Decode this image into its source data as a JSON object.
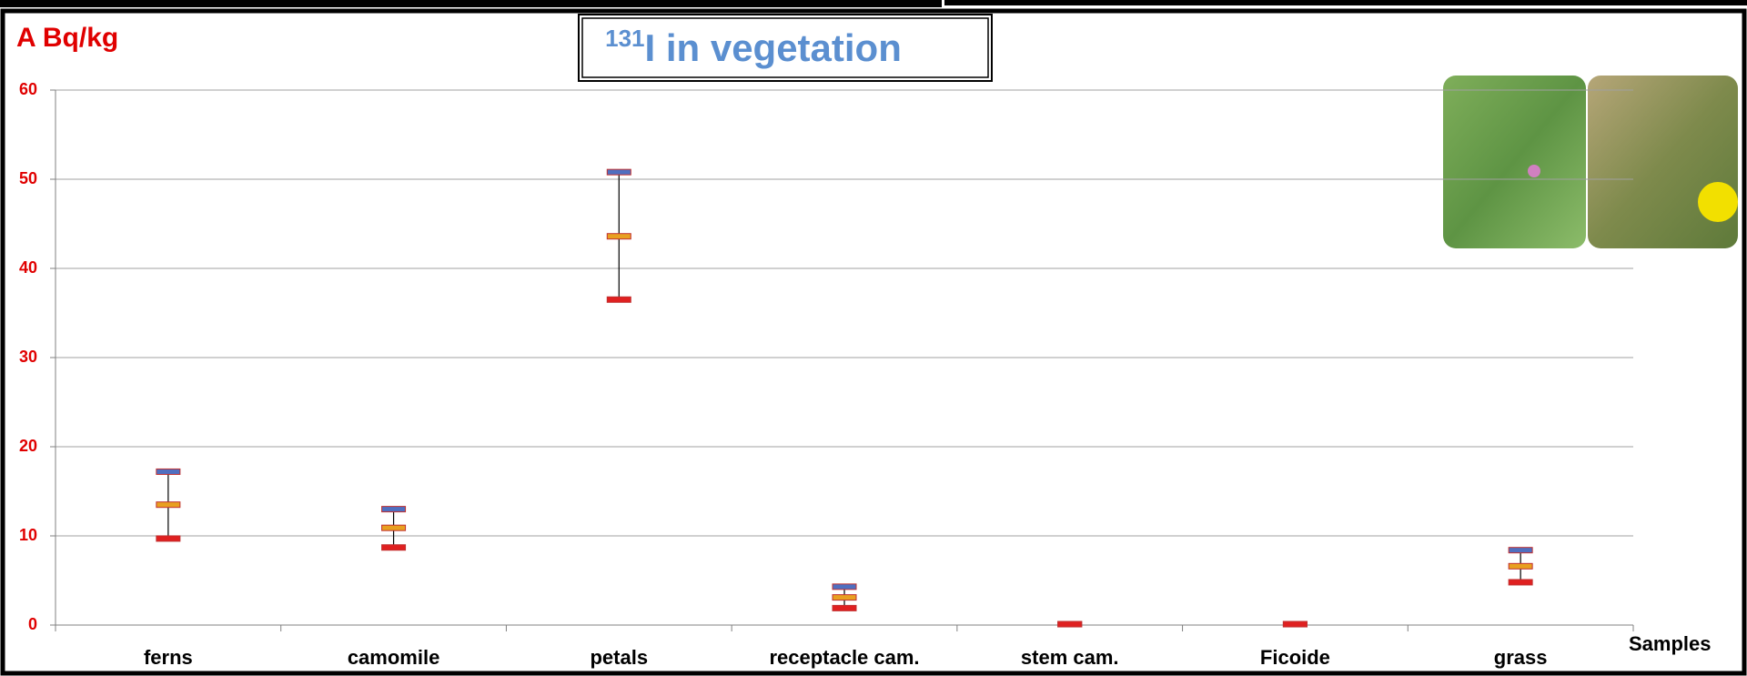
{
  "chart_data": {
    "type": "hilo",
    "title_superscript": "131",
    "title": "I in vegetation",
    "y_label": "A Bq/kg",
    "x_label": "Samples",
    "categories": [
      "ferns",
      "camomile",
      "petals",
      "receptacle cam.",
      "stem cam.",
      "Ficoide",
      "grass"
    ],
    "series": [
      {
        "color": "#4f6fc0",
        "values": [
          17.2,
          13.0,
          50.8,
          4.3,
          0.1,
          0.1,
          8.4
        ]
      },
      {
        "color": "#e8a020",
        "values": [
          13.5,
          10.9,
          43.6,
          3.1,
          0.1,
          0.1,
          6.6
        ]
      },
      {
        "color": "#e02020",
        "values": [
          9.7,
          8.7,
          36.5,
          1.9,
          0.1,
          0.1,
          4.8
        ]
      }
    ],
    "ylim": [
      0,
      60
    ],
    "yticks": [
      0,
      10,
      20,
      30,
      40,
      50,
      60
    ],
    "grid": true
  }
}
